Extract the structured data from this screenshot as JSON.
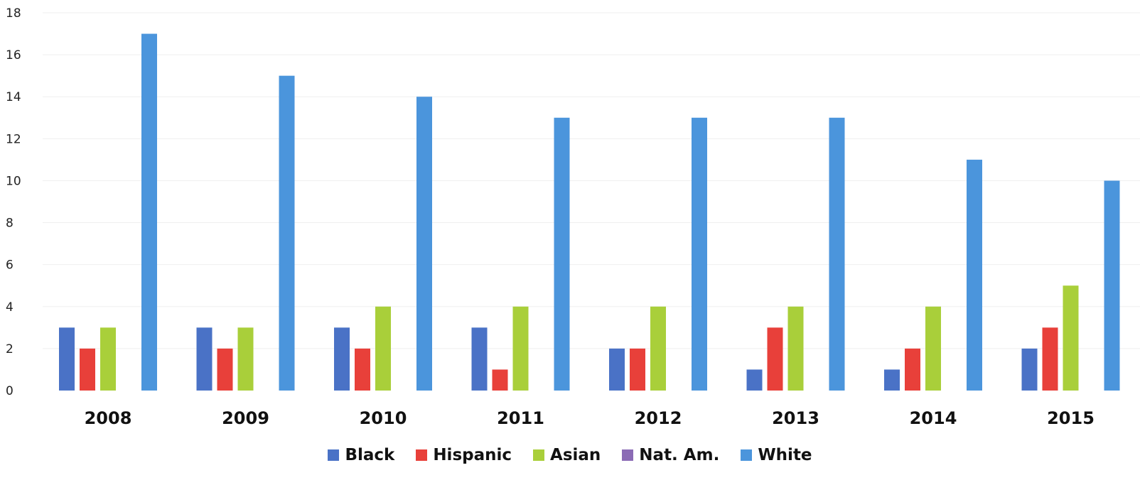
{
  "chart_data": {
    "type": "bar",
    "title": "",
    "xlabel": "",
    "ylabel": "",
    "ylim": [
      0,
      18
    ],
    "yticks": [
      0,
      2,
      4,
      6,
      8,
      10,
      12,
      14,
      16,
      18
    ],
    "grid": true,
    "legend_position": "bottom",
    "categories": [
      "2008",
      "2009",
      "2010",
      "2011",
      "2012",
      "2013",
      "2014",
      "2015"
    ],
    "series": [
      {
        "name": "Black",
        "color": "#4a72c6",
        "values": [
          3,
          3,
          3,
          3,
          2,
          1,
          1,
          2
        ]
      },
      {
        "name": "Hispanic",
        "color": "#e8403a",
        "values": [
          2,
          2,
          2,
          1,
          2,
          3,
          2,
          3
        ]
      },
      {
        "name": "Asian",
        "color": "#a9cf3a",
        "values": [
          3,
          3,
          4,
          4,
          4,
          4,
          4,
          5
        ]
      },
      {
        "name": "Nat. Am.",
        "color": "#8b6bb5",
        "values": [
          0,
          0,
          0,
          0,
          0,
          0,
          0,
          0
        ]
      },
      {
        "name": "White",
        "color": "#4b95dc",
        "values": [
          17,
          15,
          14,
          13,
          13,
          13,
          11,
          10
        ]
      }
    ]
  }
}
